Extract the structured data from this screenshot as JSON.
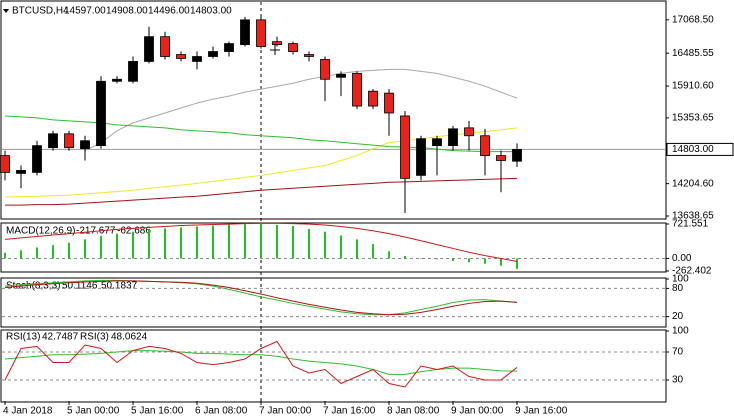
{
  "chart_data": [
    {
      "type": "candlestick",
      "title": "BTCUSD,H4",
      "ohlc_labels": [
        "14597.00",
        "14908.00",
        "14496.00",
        "14803.00"
      ],
      "categories": [
        "4 Jan 2018",
        null,
        null,
        null,
        "5 Jan 00:00",
        null,
        null,
        null,
        "5 Jan 16:00",
        null,
        null,
        null,
        "6 Jan 08:00",
        null,
        null,
        null,
        "7 Jan 00:00",
        null,
        null,
        null,
        "7 Jan 16:00",
        null,
        null,
        null,
        "8 Jan 08:00",
        null,
        null,
        null,
        "9 Jan 00:00",
        null,
        null,
        null,
        "9 Jan 16:00"
      ],
      "open": [
        14695,
        14384,
        14401,
        14834,
        15076,
        14817,
        14869,
        15994,
        15994,
        16341,
        16774,
        16462,
        16341,
        16427,
        16514,
        16635,
        17068,
        16687,
        16653,
        16462,
        16375,
        16064,
        16133,
        15821,
        15787,
        15388,
        14349,
        14869,
        14869,
        15180,
        15042,
        14695,
        14597
      ],
      "high": [
        14782,
        14522,
        14955,
        15128,
        15128,
        15042,
        16081,
        16081,
        16427,
        16947,
        16860,
        16514,
        16514,
        16601,
        16687,
        17120,
        17120,
        16774,
        16687,
        16514,
        16427,
        16168,
        16168,
        15856,
        15856,
        15475,
        15042,
        15042,
        15215,
        15302,
        15163,
        14782,
        14908
      ],
      "low": [
        14262,
        14124,
        14349,
        14782,
        14782,
        14609,
        14817,
        15960,
        15960,
        16306,
        16375,
        16341,
        16202,
        16393,
        16427,
        16601,
        16566,
        16601,
        16462,
        16341,
        15648,
        15735,
        15510,
        15510,
        15042,
        13691,
        14262,
        14349,
        14782,
        14782,
        14349,
        14055,
        14496
      ],
      "close": [
        14401,
        14436,
        14869,
        15076,
        14834,
        14955,
        15994,
        16029,
        16341,
        16774,
        16427,
        16393,
        16427,
        16514,
        16653,
        17068,
        16601,
        16635,
        16514,
        16427,
        16029,
        16116,
        15561,
        15561,
        15440,
        14297,
        14990,
        14990,
        15163,
        15042,
        14695,
        14609,
        14803
      ],
      "up_color": "#000000",
      "down_color": "#e8231c",
      "series": [
        {
          "color": "#a8a8a8",
          "values": [
            null,
            null,
            null,
            null,
            null,
            14782,
            14921,
            15128,
            15267,
            15354,
            15440,
            15527,
            15613,
            15683,
            15735,
            15804,
            15856,
            15908,
            15960,
            16029,
            16081,
            16133,
            16168,
            16185,
            16202,
            16202,
            16168,
            16133,
            16064,
            15994,
            15908,
            15804,
            15700
          ]
        },
        {
          "color": "#f2e829",
          "values": [
            13968,
            13977,
            13985,
            13994,
            14003,
            14023,
            14046,
            14067,
            14089,
            14124,
            14150,
            14179,
            14210,
            14245,
            14280,
            14314,
            14349,
            14392,
            14436,
            14479,
            14522,
            14609,
            14695,
            14817,
            14921,
            14955,
            14990,
            15024,
            15059,
            15085,
            15111,
            15146,
            15180
          ]
        },
        {
          "color": "#2fbf2f",
          "values": [
            15388,
            15371,
            15354,
            15319,
            15302,
            15284,
            15267,
            15232,
            15215,
            15198,
            15180,
            15146,
            15128,
            15111,
            15094,
            15059,
            15042,
            15024,
            15007,
            14972,
            14955,
            14929,
            14903,
            14877,
            14851,
            14843,
            14834,
            14808,
            14782,
            14773,
            14765,
            14765,
            14765
          ]
        },
        {
          "color": "#a01414",
          "values": [
            13829,
            13829,
            13838,
            13838,
            13847,
            13864,
            13881,
            13899,
            13916,
            13933,
            13951,
            13968,
            13985,
            14011,
            14037,
            14063,
            14089,
            14107,
            14124,
            14141,
            14159,
            14176,
            14193,
            14210,
            14228,
            14236,
            14245,
            14254,
            14262,
            14271,
            14280,
            14288,
            14297
          ]
        }
      ],
      "price_line": {
        "value": 14803,
        "label": "14803.00"
      },
      "ylim": [
        13604,
        17380
      ],
      "yticks": [
        {
          "value": 17068.5,
          "label": "17068.50"
        },
        16485.55,
        {
          "value": 15910.6,
          "label": "15910.60"
        },
        15353.65,
        {
          "value": 14204.6,
          "label": "14204.60"
        },
        13638.65
      ],
      "grid": false
    },
    {
      "type": "bar",
      "title": "MACD(12,26,9)",
      "series": [
        {
          "type": "bar",
          "color": "#22c022",
          "values": [
            120,
            170,
            230,
            280,
            330,
            400,
            470,
            520,
            560,
            600,
            630,
            650,
            670,
            690,
            710,
            720,
            721,
            700,
            680,
            620,
            560,
            480,
            400,
            300,
            150,
            50,
            10,
            -20,
            -50,
            -80,
            -110,
            -150,
            -217.677
          ]
        },
        {
          "type": "line",
          "color": "#d01818",
          "values": [
            400,
            430,
            460,
            490,
            520,
            550,
            580,
            610,
            630,
            650,
            670,
            690,
            700,
            710,
            720,
            730,
            735,
            735,
            730,
            720,
            700,
            670,
            630,
            580,
            520,
            450,
            370,
            290,
            210,
            130,
            60,
            0,
            -62.686
          ]
        }
      ],
      "ylim": [
        -262.402,
        721.551
      ],
      "yticks": [
        721.551,
        {
          "value": 0,
          "label": "0.00"
        },
        -262.402
      ],
      "grid": true
    },
    {
      "type": "line",
      "title": "Stoch(8,3,3)",
      "series": [
        {
          "color": "#2fbf2f",
          "values": [
            85,
            88,
            90,
            92,
            94,
            96,
            97,
            97,
            96,
            95,
            94,
            92,
            90,
            85,
            78,
            70,
            62,
            55,
            48,
            42,
            36,
            30,
            26,
            24,
            24,
            28,
            35,
            42,
            50,
            55,
            56,
            53,
            50.1146
          ]
        },
        {
          "color": "#b01414",
          "values": [
            82,
            85,
            88,
            90,
            92,
            94,
            95,
            96,
            96,
            95,
            94,
            93,
            91,
            87,
            82,
            75,
            68,
            60,
            53,
            46,
            40,
            34,
            29,
            26,
            24,
            25,
            29,
            35,
            42,
            48,
            52,
            53,
            50.1837
          ]
        }
      ],
      "ylim": [
        0,
        100
      ],
      "yticks": [
        100,
        80,
        20
      ],
      "grid": true
    },
    {
      "type": "line",
      "series": [
        {
          "name": "RSI(13)",
          "color": "#2fbf2f",
          "values": [
            60,
            62,
            64,
            66,
            66,
            67,
            68,
            70,
            72,
            72,
            71,
            70,
            68,
            68,
            67,
            66,
            66,
            64,
            60,
            57,
            55,
            53,
            50,
            45,
            38,
            38,
            42,
            45,
            47,
            47,
            45,
            43,
            42.7487
          ]
        },
        {
          "name": "RSI(3)",
          "color": "#d01818",
          "values": [
            30,
            75,
            78,
            55,
            55,
            80,
            75,
            55,
            72,
            78,
            75,
            68,
            55,
            52,
            55,
            60,
            75,
            85,
            50,
            40,
            45,
            25,
            35,
            45,
            25,
            20,
            50,
            45,
            50,
            35,
            30,
            30,
            48.0624
          ]
        }
      ],
      "ylim": [
        0,
        100
      ],
      "yticks": [
        100,
        70,
        30
      ],
      "grid": true
    }
  ]
}
